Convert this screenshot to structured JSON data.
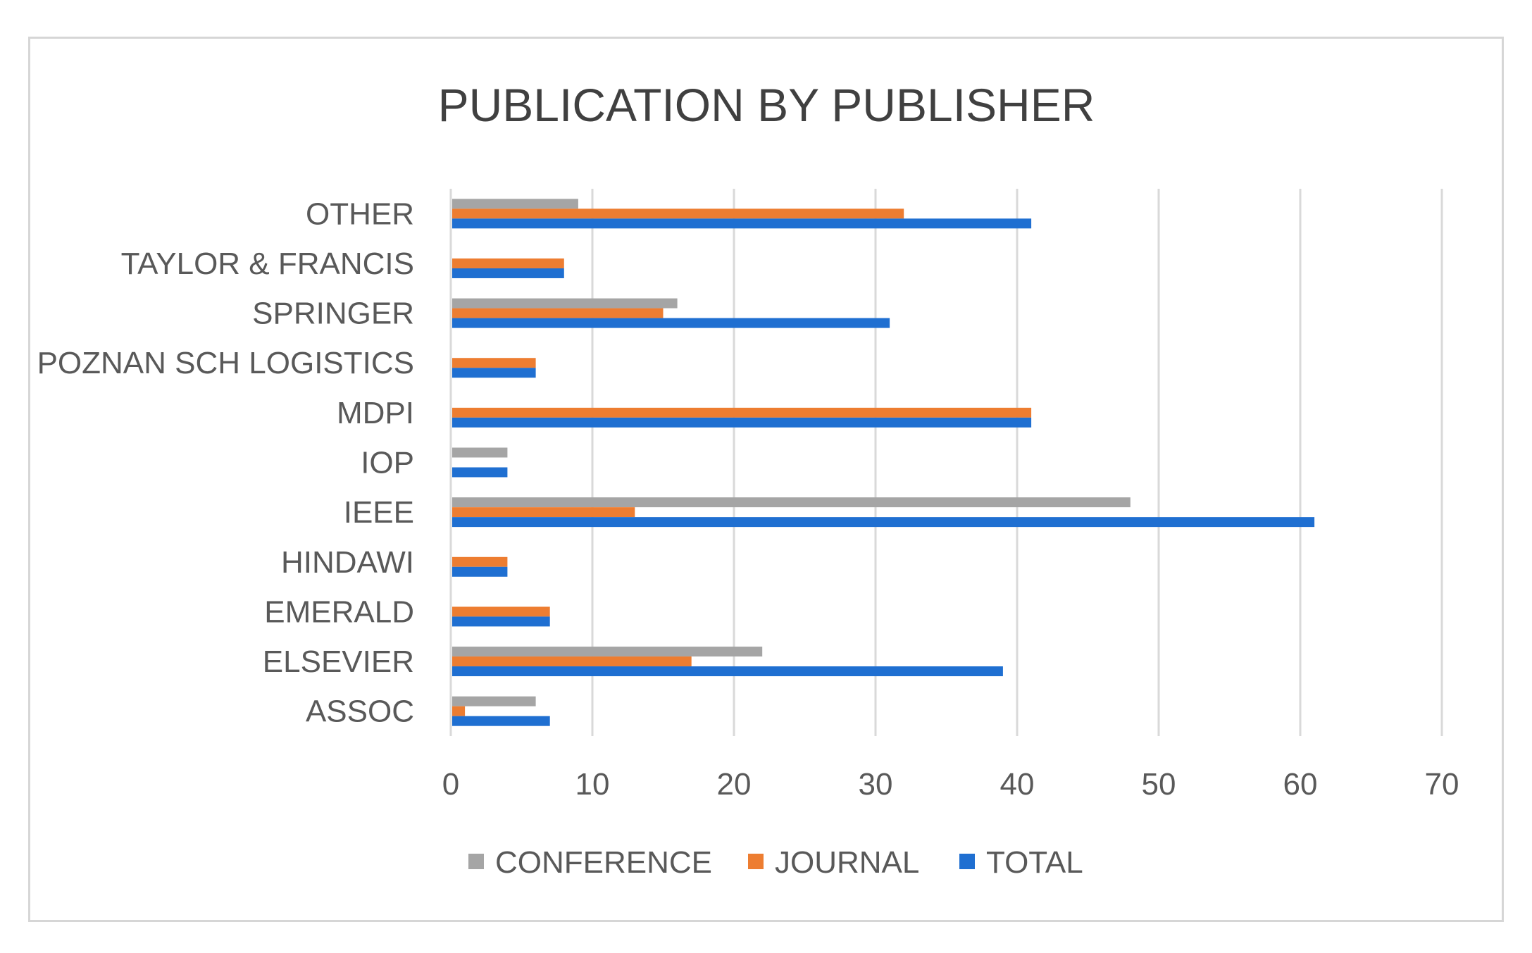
{
  "chart_data": {
    "type": "bar",
    "orientation": "horizontal",
    "title": "PUBLICATION BY PUBLISHER",
    "categories": [
      "OTHER",
      "TAYLOR & FRANCIS",
      "SPRINGER",
      "POZNAN SCH LOGISTICS",
      "MDPI",
      "IOP",
      "IEEE",
      "HINDAWI",
      "EMERALD",
      "ELSEVIER",
      "ASSOC"
    ],
    "series": [
      {
        "name": "CONFERENCE",
        "color": "#a5a5a5",
        "values": [
          9,
          0,
          16,
          0,
          0,
          4,
          48,
          0,
          0,
          22,
          6
        ]
      },
      {
        "name": "JOURNAL",
        "color": "#ed7d31",
        "values": [
          32,
          8,
          15,
          6,
          41,
          0,
          13,
          4,
          7,
          17,
          1
        ]
      },
      {
        "name": "TOTAL",
        "color": "#1f6fd1",
        "values": [
          41,
          8,
          31,
          6,
          41,
          4,
          61,
          4,
          7,
          39,
          7
        ]
      }
    ],
    "xlim": [
      0,
      70
    ],
    "x_ticks": [
      "0",
      "10",
      "20",
      "30",
      "40",
      "50",
      "60",
      "70"
    ],
    "grid": true,
    "legend_position": "bottom",
    "xlabel": "",
    "ylabel": ""
  }
}
